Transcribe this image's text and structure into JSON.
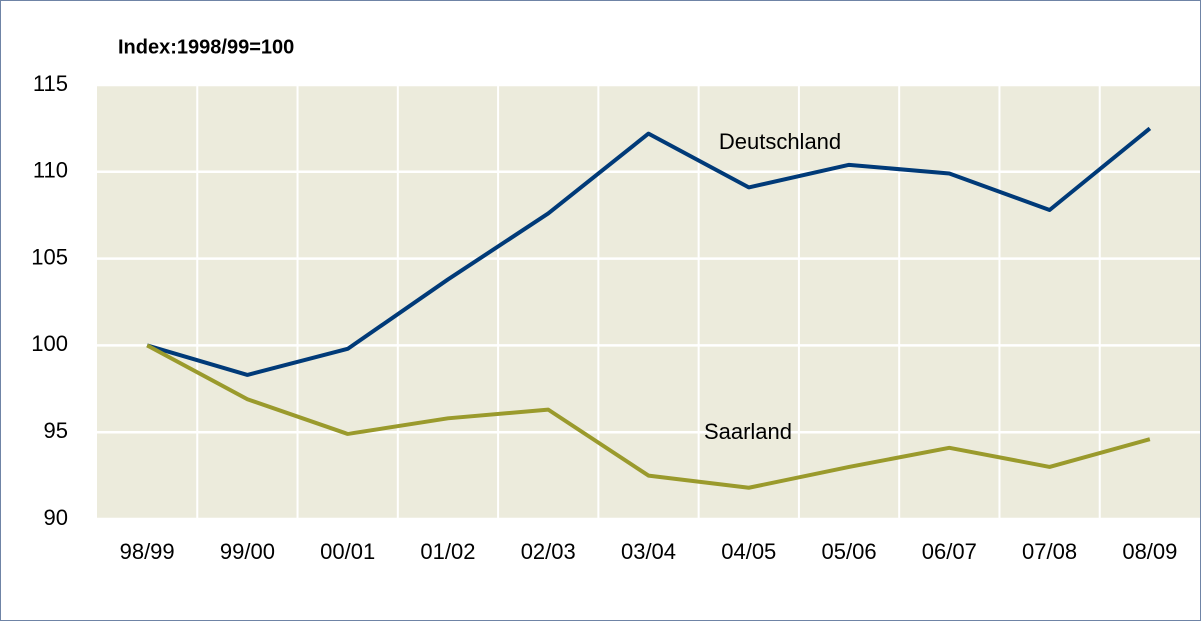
{
  "chart_data": {
    "type": "line",
    "title": "Index:1998/99=100",
    "categories": [
      "98/99",
      "99/00",
      "00/01",
      "01/02",
      "02/03",
      "03/04",
      "04/05",
      "05/06",
      "06/07",
      "07/08",
      "08/09"
    ],
    "series": [
      {
        "name": "Deutschland",
        "color": "#003a78",
        "values": [
          100,
          98.3,
          99.8,
          103.8,
          107.6,
          112.2,
          109.1,
          110.4,
          109.9,
          107.8,
          112.5
        ]
      },
      {
        "name": "Saarland",
        "color": "#9a9a2c",
        "values": [
          100,
          96.9,
          94.9,
          95.8,
          96.3,
          92.5,
          91.8,
          93.0,
          94.1,
          93.0,
          94.6
        ]
      }
    ],
    "ylim": [
      90,
      115
    ],
    "yticks": [
      90,
      95,
      100,
      105,
      110,
      115
    ],
    "grid": true
  }
}
